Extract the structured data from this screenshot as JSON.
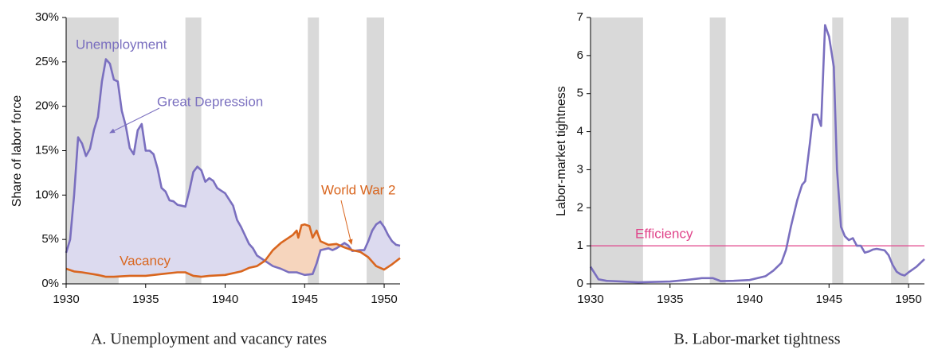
{
  "chart_data": [
    {
      "type": "line",
      "caption": "A. Unemployment and vacancy rates",
      "ylabel": "Share of labor force",
      "xlim": [
        1930,
        1951
      ],
      "xticks": [
        1930,
        1935,
        1940,
        1945,
        1950
      ],
      "ylim": [
        0,
        30
      ],
      "yticks": [
        {
          "value": 0,
          "label": "0%"
        },
        {
          "value": 5,
          "label": "5%"
        },
        {
          "value": 10,
          "label": "10%"
        },
        {
          "value": 15,
          "label": "15%"
        },
        {
          "value": 20,
          "label": "20%"
        },
        {
          "value": 25,
          "label": "25%"
        },
        {
          "value": 30,
          "label": "30%"
        }
      ],
      "recessions": [
        [
          1930,
          1933.3
        ],
        [
          1937.5,
          1938.5
        ],
        [
          1945.2,
          1945.9
        ],
        [
          1948.9,
          1950
        ]
      ],
      "fill_between": true,
      "series": [
        {
          "name": "Unemployment",
          "color": "#7a6fbf",
          "fill": "#dcdaef",
          "x": [
            1930,
            1930.25,
            1930.5,
            1930.75,
            1931,
            1931.25,
            1931.5,
            1931.75,
            1932,
            1932.25,
            1932.5,
            1932.75,
            1933,
            1933.25,
            1933.5,
            1933.75,
            1934,
            1934.25,
            1934.5,
            1934.75,
            1935,
            1935.25,
            1935.5,
            1935.75,
            1936,
            1936.25,
            1936.5,
            1936.75,
            1937,
            1937.25,
            1937.5,
            1937.75,
            1938,
            1938.25,
            1938.5,
            1938.75,
            1939,
            1939.25,
            1939.5,
            1939.75,
            1940,
            1940.25,
            1940.5,
            1940.75,
            1941,
            1941.5,
            1941.75,
            1942,
            1942.5,
            1943,
            1943.5,
            1944,
            1944.5,
            1945,
            1945.5,
            1945.75,
            1946,
            1946.5,
            1946.75,
            1947,
            1947.5,
            1947.75,
            1948,
            1948.5,
            1948.75,
            1949,
            1949.25,
            1949.5,
            1949.75,
            1950,
            1950.25,
            1950.5,
            1950.75,
            1951
          ],
          "values": [
            3.5,
            5,
            10,
            16.5,
            15.8,
            14.4,
            15.2,
            17.3,
            18.8,
            22.8,
            25.3,
            24.8,
            23,
            22.8,
            19.5,
            17.8,
            15.3,
            14.6,
            17.3,
            18,
            15,
            15,
            14.6,
            13,
            10.8,
            10.4,
            9.4,
            9.3,
            8.9,
            8.8,
            8.7,
            10.5,
            12.6,
            13.2,
            12.8,
            11.5,
            11.9,
            11.6,
            10.8,
            10.5,
            10.2,
            9.5,
            8.8,
            7.2,
            6.4,
            4.5,
            4,
            3.2,
            2.6,
            2,
            1.7,
            1.3,
            1.3,
            1,
            1.1,
            2.3,
            3.8,
            4,
            3.8,
            4,
            4.6,
            4.3,
            3.7,
            3.8,
            3.8,
            4.8,
            6,
            6.7,
            7,
            6.4,
            5.5,
            4.8,
            4.4,
            4.3
          ]
        },
        {
          "name": "Vacancy",
          "color": "#d9661f",
          "fill": "#f6d5bd",
          "x": [
            1930,
            1930.5,
            1931,
            1932,
            1932.5,
            1933,
            1934,
            1935,
            1936,
            1937,
            1937.5,
            1938,
            1938.5,
            1939,
            1940,
            1941,
            1941.5,
            1942,
            1942.5,
            1943,
            1943.5,
            1944,
            1944.25,
            1944.5,
            1944.6,
            1944.8,
            1945,
            1945.3,
            1945.5,
            1945.75,
            1946,
            1946.5,
            1947,
            1947.5,
            1948,
            1948.5,
            1949,
            1949.5,
            1950,
            1950.5,
            1951
          ],
          "values": [
            1.7,
            1.4,
            1.3,
            1,
            0.8,
            0.8,
            0.9,
            0.9,
            1.1,
            1.3,
            1.3,
            0.9,
            0.8,
            0.9,
            1,
            1.4,
            1.8,
            2,
            2.6,
            3.8,
            4.6,
            5.2,
            5.5,
            6,
            5.2,
            6.6,
            6.7,
            6.5,
            5.2,
            6,
            4.8,
            4.4,
            4.5,
            4.1,
            3.8,
            3.6,
            3,
            2,
            1.6,
            2.2,
            2.9
          ]
        }
      ],
      "annotations": [
        {
          "text": "Unemployment",
          "color": "#7a6fbf"
        },
        {
          "text": "Great Depression",
          "color": "#7a6fbf"
        },
        {
          "text": "Vacancy",
          "color": "#d9661f"
        },
        {
          "text": "World War 2",
          "color": "#d9661f"
        }
      ]
    },
    {
      "type": "line",
      "caption": "B. Labor-market tightness",
      "ylabel": "Labor-market tightness",
      "xlim": [
        1930,
        1951
      ],
      "xticks": [
        1930,
        1935,
        1940,
        1945,
        1950
      ],
      "ylim": [
        0,
        7
      ],
      "yticks": [
        0,
        1,
        2,
        3,
        4,
        5,
        6,
        7
      ],
      "recessions": [
        [
          1930,
          1933.3
        ],
        [
          1937.5,
          1938.5
        ],
        [
          1945.2,
          1945.9
        ],
        [
          1948.9,
          1950
        ]
      ],
      "reference_lines": [
        {
          "value": 1,
          "label": "Efficiency",
          "color": "#e0448a"
        }
      ],
      "series": [
        {
          "color": "#7a6fbf",
          "x": [
            1930,
            1930.5,
            1931,
            1932,
            1933,
            1934,
            1935,
            1936,
            1937,
            1937.7,
            1938.2,
            1939,
            1940,
            1941,
            1941.5,
            1942,
            1942.3,
            1942.6,
            1943,
            1943.3,
            1943.5,
            1943.8,
            1944,
            1944.25,
            1944.5,
            1944.75,
            1945,
            1945.3,
            1945.5,
            1945.75,
            1946,
            1946.25,
            1946.5,
            1946.75,
            1947,
            1947.25,
            1947.5,
            1947.75,
            1948,
            1948.5,
            1948.75,
            1949,
            1949.25,
            1949.5,
            1949.75,
            1950,
            1950.5,
            1951
          ],
          "values": [
            0.45,
            0.12,
            0.08,
            0.06,
            0.04,
            0.05,
            0.06,
            0.1,
            0.15,
            0.15,
            0.07,
            0.08,
            0.1,
            0.2,
            0.35,
            0.55,
            0.9,
            1.5,
            2.2,
            2.6,
            2.7,
            3.7,
            4.45,
            4.45,
            4.15,
            6.8,
            6.5,
            5.7,
            3,
            1.5,
            1.25,
            1.15,
            1.2,
            1,
            1,
            0.82,
            0.85,
            0.9,
            0.92,
            0.88,
            0.75,
            0.5,
            0.32,
            0.25,
            0.22,
            0.3,
            0.45,
            0.65
          ]
        }
      ]
    }
  ]
}
